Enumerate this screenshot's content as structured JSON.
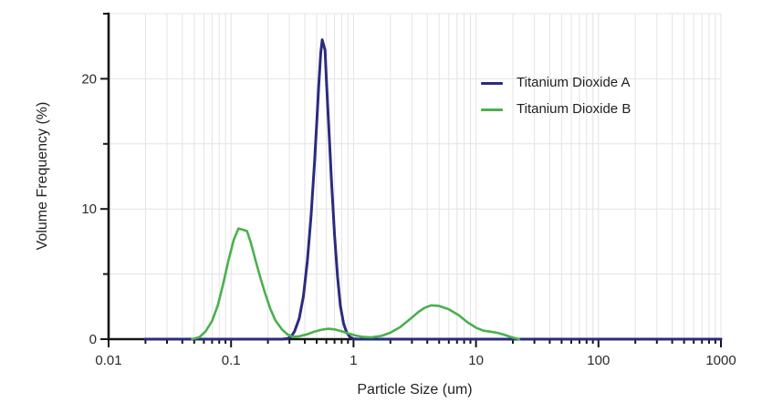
{
  "figure_title": "",
  "chart_data": {
    "type": "line",
    "title": "",
    "xlabel": "Particle Size (um)",
    "ylabel": "Volume Frequency (%)",
    "x_scale": "log",
    "xlim": [
      0.01,
      1000
    ],
    "ylim": [
      0,
      25
    ],
    "x_ticks": [
      0.01,
      0.1,
      1,
      10,
      100,
      1000
    ],
    "x_tick_labels": [
      "0.01",
      "0.1",
      "1",
      "10",
      "100",
      "1000"
    ],
    "y_ticks": [
      0,
      5,
      10,
      15,
      20,
      25
    ],
    "y_labeled_ticks": [
      0,
      10,
      20
    ],
    "grid": true,
    "grid_color": "#e3e3e3",
    "axis_color": "#161616",
    "tick_label_color": "#2a2a2a",
    "tick_label_font_size": 15,
    "legend_position": "upper right",
    "series": [
      {
        "name": "Titanium Dioxide A",
        "color": "#2a2c7e",
        "line_width": 3,
        "points": [
          [
            0.02,
            0
          ],
          [
            0.05,
            0
          ],
          [
            0.1,
            0
          ],
          [
            0.2,
            0
          ],
          [
            0.26,
            0
          ],
          [
            0.29,
            0.05
          ],
          [
            0.31,
            0.2
          ],
          [
            0.33,
            0.6
          ],
          [
            0.36,
            1.6
          ],
          [
            0.39,
            3.3
          ],
          [
            0.42,
            6.0
          ],
          [
            0.45,
            9.5
          ],
          [
            0.48,
            13.5
          ],
          [
            0.5,
            16.5
          ],
          [
            0.52,
            19.5
          ],
          [
            0.54,
            22.0
          ],
          [
            0.555,
            23.0
          ],
          [
            0.57,
            22.6
          ],
          [
            0.585,
            22.2
          ],
          [
            0.6,
            20.0
          ],
          [
            0.63,
            16.0
          ],
          [
            0.66,
            12.2
          ],
          [
            0.7,
            8.0
          ],
          [
            0.74,
            4.8
          ],
          [
            0.78,
            2.6
          ],
          [
            0.83,
            1.2
          ],
          [
            0.88,
            0.5
          ],
          [
            0.94,
            0.15
          ],
          [
            1.0,
            0.03
          ],
          [
            1.1,
            0
          ],
          [
            2,
            0
          ],
          [
            5,
            0
          ],
          [
            10,
            0
          ],
          [
            50,
            0
          ],
          [
            100,
            0
          ],
          [
            500,
            0
          ],
          [
            1000,
            0
          ]
        ]
      },
      {
        "name": "Titanium Dioxide B",
        "color": "#4bb04f",
        "line_width": 2.6,
        "points": [
          [
            0.048,
            0
          ],
          [
            0.055,
            0.15
          ],
          [
            0.062,
            0.6
          ],
          [
            0.07,
            1.4
          ],
          [
            0.078,
            2.6
          ],
          [
            0.086,
            4.2
          ],
          [
            0.095,
            6.0
          ],
          [
            0.105,
            7.6
          ],
          [
            0.115,
            8.5
          ],
          [
            0.125,
            8.4
          ],
          [
            0.135,
            8.3
          ],
          [
            0.145,
            7.4
          ],
          [
            0.16,
            5.9
          ],
          [
            0.175,
            4.6
          ],
          [
            0.19,
            3.5
          ],
          [
            0.21,
            2.3
          ],
          [
            0.23,
            1.45
          ],
          [
            0.26,
            0.75
          ],
          [
            0.29,
            0.35
          ],
          [
            0.32,
            0.18
          ],
          [
            0.36,
            0.22
          ],
          [
            0.42,
            0.38
          ],
          [
            0.48,
            0.58
          ],
          [
            0.55,
            0.73
          ],
          [
            0.62,
            0.8
          ],
          [
            0.7,
            0.75
          ],
          [
            0.8,
            0.6
          ],
          [
            0.92,
            0.42
          ],
          [
            1.05,
            0.27
          ],
          [
            1.2,
            0.17
          ],
          [
            1.4,
            0.14
          ],
          [
            1.7,
            0.25
          ],
          [
            2.0,
            0.5
          ],
          [
            2.4,
            0.92
          ],
          [
            2.9,
            1.55
          ],
          [
            3.4,
            2.1
          ],
          [
            3.8,
            2.4
          ],
          [
            4.3,
            2.6
          ],
          [
            5.0,
            2.55
          ],
          [
            6.0,
            2.3
          ],
          [
            7.2,
            1.85
          ],
          [
            8.5,
            1.3
          ],
          [
            10,
            0.88
          ],
          [
            11.5,
            0.65
          ],
          [
            13,
            0.58
          ],
          [
            15,
            0.48
          ],
          [
            17,
            0.34
          ],
          [
            19,
            0.18
          ],
          [
            21,
            0.07
          ],
          [
            22.5,
            0
          ]
        ]
      }
    ]
  },
  "legend": {
    "items": [
      {
        "label": "Titanium Dioxide A"
      },
      {
        "label": "Titanium Dioxide B"
      }
    ]
  },
  "axes_titles": {
    "x": "Particle Size (um)",
    "y": "Volume Frequency (%)"
  }
}
